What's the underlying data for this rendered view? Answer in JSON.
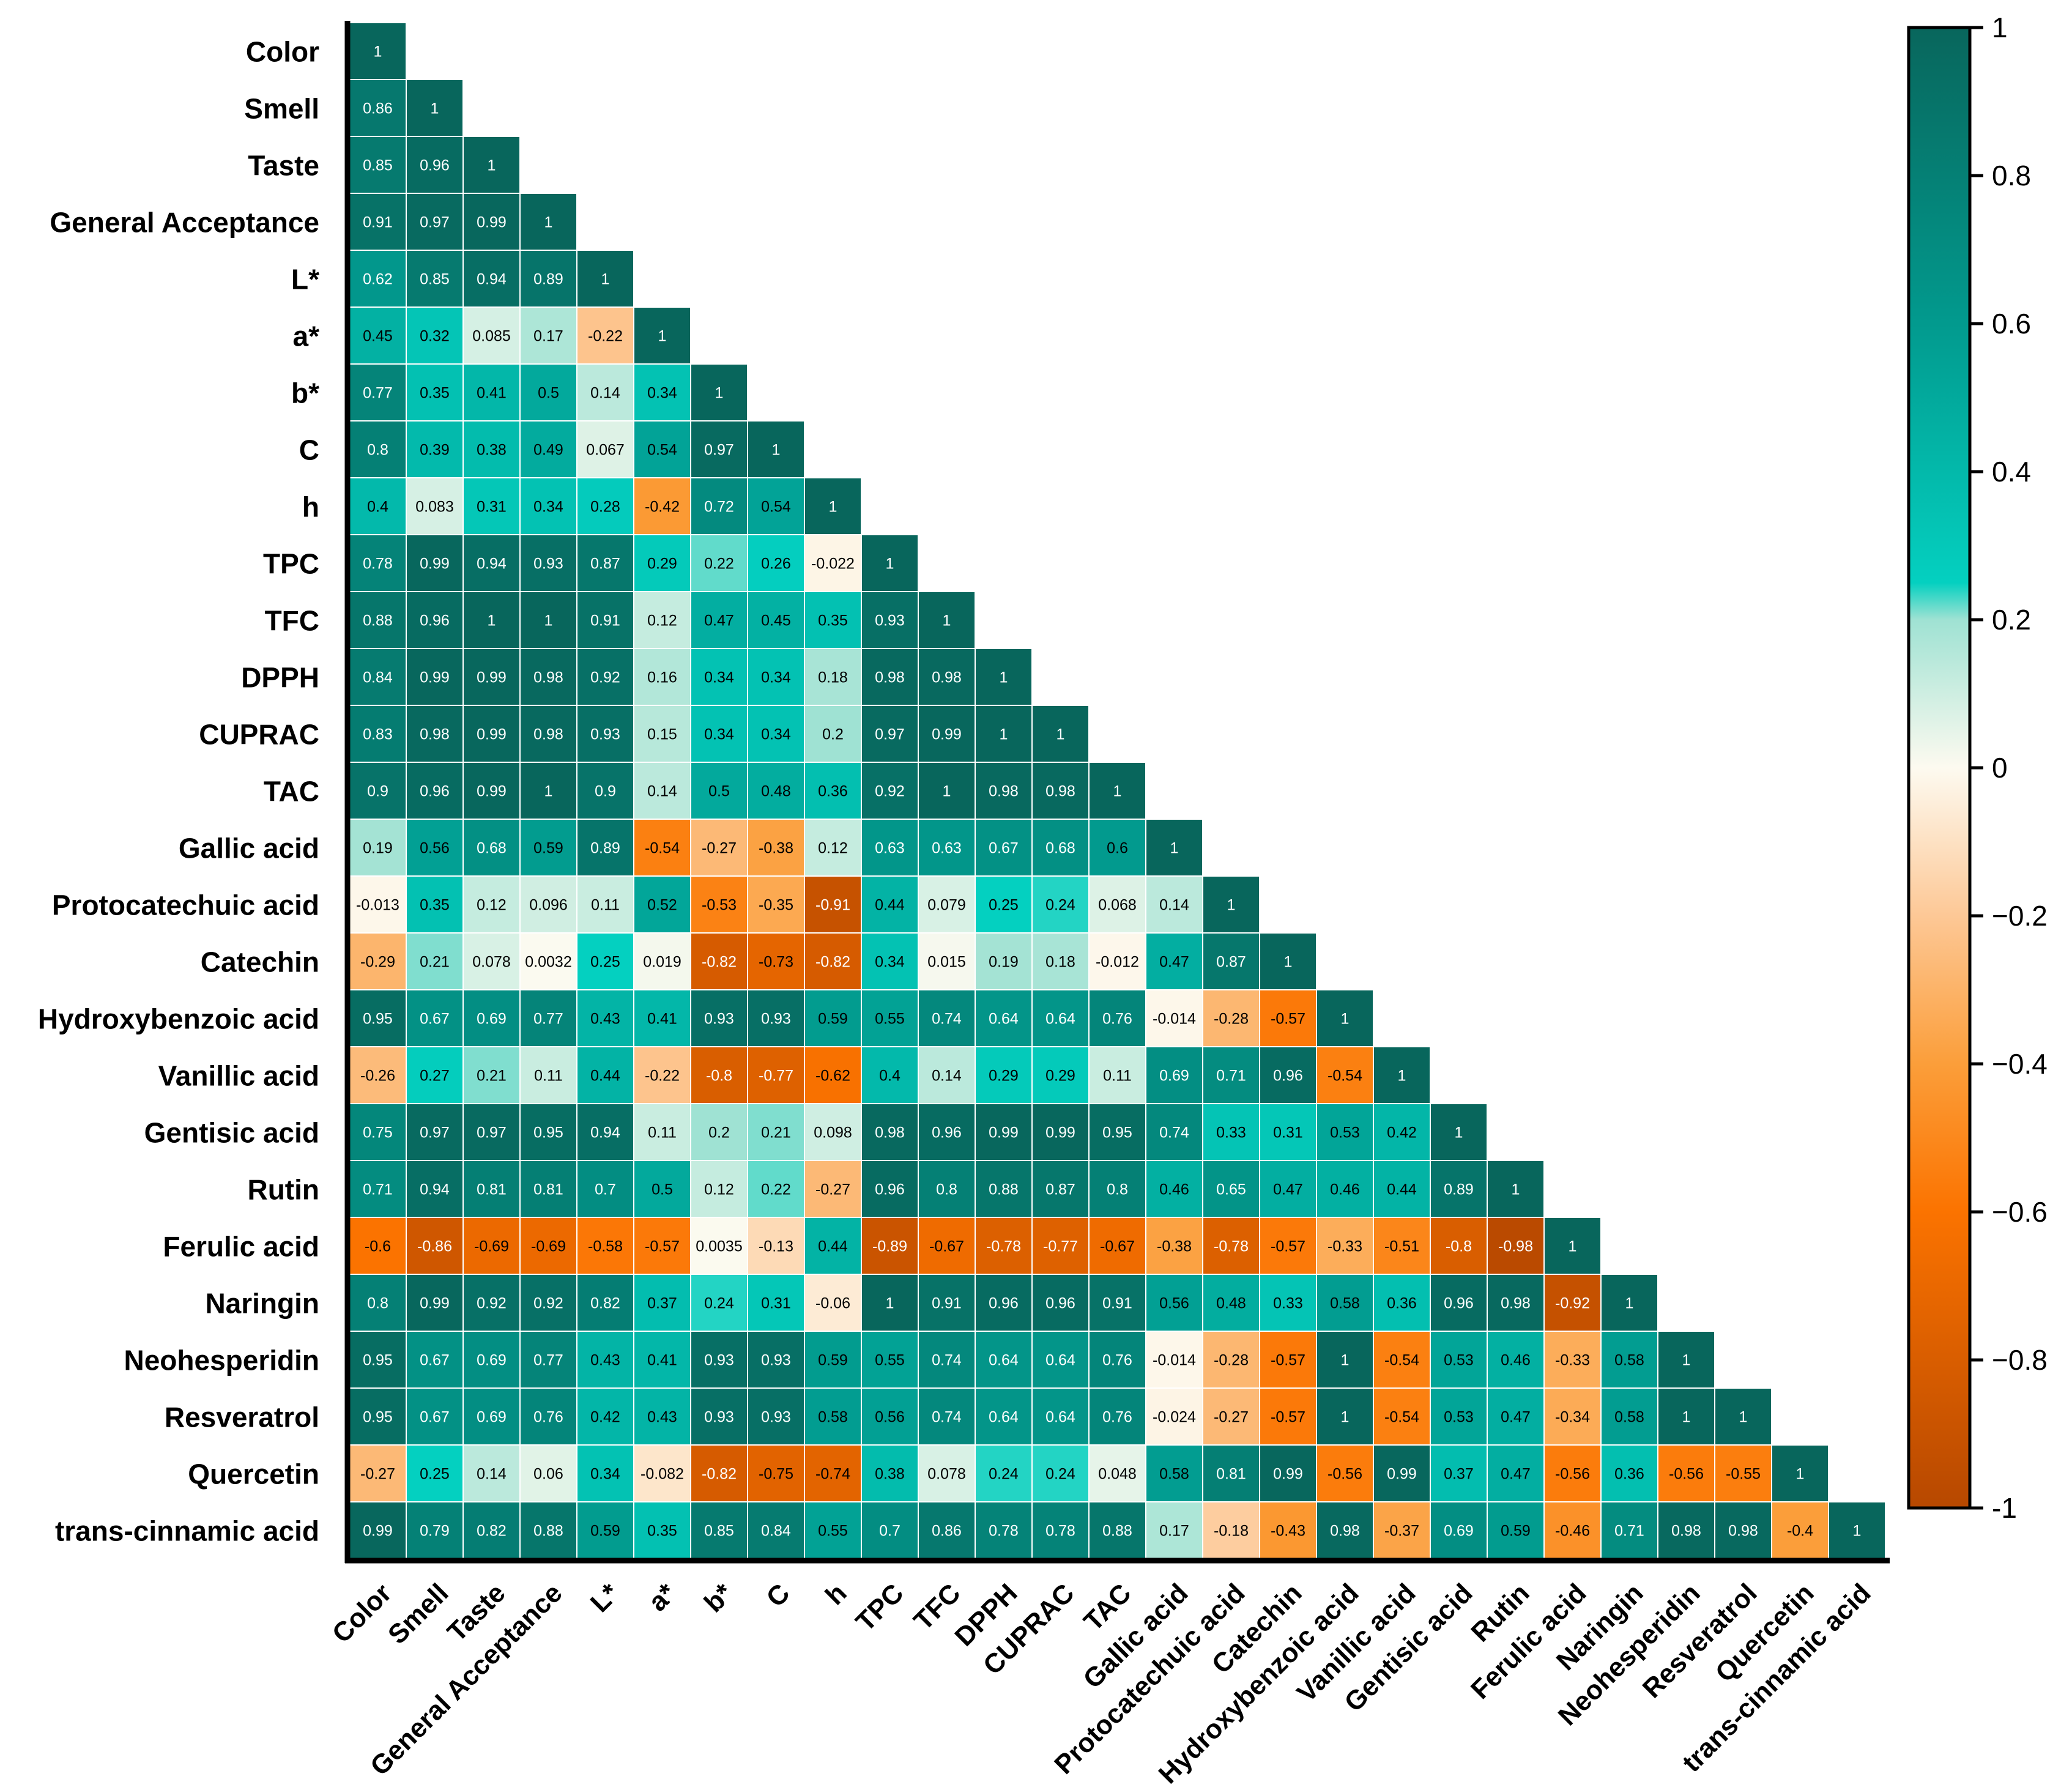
{
  "chart_data": {
    "type": "heatmap",
    "title": "",
    "layout": "lower-triangular correlation matrix",
    "variables": [
      "Color",
      "Smell",
      "Taste",
      "General Acceptance",
      "L*",
      "a*",
      "b*",
      "C",
      "h",
      "TPC",
      "TFC",
      "DPPH",
      "CUPRAC",
      "TAC",
      "Gallic acid",
      "Protocatechuic acid",
      "Catechin",
      "Hydroxybenzoic acid",
      "Vanillic acid",
      "Gentisic acid",
      "Rutin",
      "Ferulic acid",
      "Naringin",
      "Neohesperidin",
      "Resveratrol",
      "Quercetin",
      "trans-cinnamic acid"
    ],
    "values": [
      [
        "1"
      ],
      [
        "0.86",
        "1"
      ],
      [
        "0.85",
        "0.96",
        "1"
      ],
      [
        "0.91",
        "0.97",
        "0.99",
        "1"
      ],
      [
        "0.62",
        "0.85",
        "0.94",
        "0.89",
        "1"
      ],
      [
        "0.45",
        "0.32",
        "0.085",
        "0.17",
        "-0.22",
        "1"
      ],
      [
        "0.77",
        "0.35",
        "0.41",
        "0.5",
        "0.14",
        "0.34",
        "1"
      ],
      [
        "0.8",
        "0.39",
        "0.38",
        "0.49",
        "0.067",
        "0.54",
        "0.97",
        "1"
      ],
      [
        "0.4",
        "0.083",
        "0.31",
        "0.34",
        "0.28",
        "-0.42",
        "0.72",
        "0.54",
        "1"
      ],
      [
        "0.78",
        "0.99",
        "0.94",
        "0.93",
        "0.87",
        "0.29",
        "0.22",
        "0.26",
        "-0.022",
        "1"
      ],
      [
        "0.88",
        "0.96",
        "1",
        "1",
        "0.91",
        "0.12",
        "0.47",
        "0.45",
        "0.35",
        "0.93",
        "1"
      ],
      [
        "0.84",
        "0.99",
        "0.99",
        "0.98",
        "0.92",
        "0.16",
        "0.34",
        "0.34",
        "0.18",
        "0.98",
        "0.98",
        "1"
      ],
      [
        "0.83",
        "0.98",
        "0.99",
        "0.98",
        "0.93",
        "0.15",
        "0.34",
        "0.34",
        "0.2",
        "0.97",
        "0.99",
        "1",
        "1"
      ],
      [
        "0.9",
        "0.96",
        "0.99",
        "1",
        "0.9",
        "0.14",
        "0.5",
        "0.48",
        "0.36",
        "0.92",
        "1",
        "0.98",
        "0.98",
        "1"
      ],
      [
        "0.19",
        "0.56",
        "0.68",
        "0.59",
        "0.89",
        "-0.54",
        "-0.27",
        "-0.38",
        "0.12",
        "0.63",
        "0.63",
        "0.67",
        "0.68",
        "0.6",
        "1"
      ],
      [
        "-0.013",
        "0.35",
        "0.12",
        "0.096",
        "0.11",
        "0.52",
        "-0.53",
        "-0.35",
        "-0.91",
        "0.44",
        "0.079",
        "0.25",
        "0.24",
        "0.068",
        "0.14",
        "1"
      ],
      [
        "-0.29",
        "0.21",
        "0.078",
        "0.0032",
        "0.25",
        "0.019",
        "-0.82",
        "-0.73",
        "-0.82",
        "0.34",
        "0.015",
        "0.19",
        "0.18",
        "-0.012",
        "0.47",
        "0.87",
        "1"
      ],
      [
        "0.95",
        "0.67",
        "0.69",
        "0.77",
        "0.43",
        "0.41",
        "0.93",
        "0.93",
        "0.59",
        "0.55",
        "0.74",
        "0.64",
        "0.64",
        "0.76",
        "-0.014",
        "-0.28",
        "-0.57",
        "1"
      ],
      [
        "-0.26",
        "0.27",
        "0.21",
        "0.11",
        "0.44",
        "-0.22",
        "-0.8",
        "-0.77",
        "-0.62",
        "0.4",
        "0.14",
        "0.29",
        "0.29",
        "0.11",
        "0.69",
        "0.71",
        "0.96",
        "-0.54",
        "1"
      ],
      [
        "0.75",
        "0.97",
        "0.97",
        "0.95",
        "0.94",
        "0.11",
        "0.2",
        "0.21",
        "0.098",
        "0.98",
        "0.96",
        "0.99",
        "0.99",
        "0.95",
        "0.74",
        "0.33",
        "0.31",
        "0.53",
        "0.42",
        "1"
      ],
      [
        "0.71",
        "0.94",
        "0.81",
        "0.81",
        "0.7",
        "0.5",
        "0.12",
        "0.22",
        "-0.27",
        "0.96",
        "0.8",
        "0.88",
        "0.87",
        "0.8",
        "0.46",
        "0.65",
        "0.47",
        "0.46",
        "0.44",
        "0.89",
        "1"
      ],
      [
        "-0.6",
        "-0.86",
        "-0.69",
        "-0.69",
        "-0.58",
        "-0.57",
        "0.0035",
        "-0.13",
        "0.44",
        "-0.89",
        "-0.67",
        "-0.78",
        "-0.77",
        "-0.67",
        "-0.38",
        "-0.78",
        "-0.57",
        "-0.33",
        "-0.51",
        "-0.8",
        "-0.98",
        "1"
      ],
      [
        "0.8",
        "0.99",
        "0.92",
        "0.92",
        "0.82",
        "0.37",
        "0.24",
        "0.31",
        "-0.06",
        "1",
        "0.91",
        "0.96",
        "0.96",
        "0.91",
        "0.56",
        "0.48",
        "0.33",
        "0.58",
        "0.36",
        "0.96",
        "0.98",
        "-0.92",
        "1"
      ],
      [
        "0.95",
        "0.67",
        "0.69",
        "0.77",
        "0.43",
        "0.41",
        "0.93",
        "0.93",
        "0.59",
        "0.55",
        "0.74",
        "0.64",
        "0.64",
        "0.76",
        "-0.014",
        "-0.28",
        "-0.57",
        "1",
        "-0.54",
        "0.53",
        "0.46",
        "-0.33",
        "0.58",
        "1"
      ],
      [
        "0.95",
        "0.67",
        "0.69",
        "0.76",
        "0.42",
        "0.43",
        "0.93",
        "0.93",
        "0.58",
        "0.56",
        "0.74",
        "0.64",
        "0.64",
        "0.76",
        "-0.024",
        "-0.27",
        "-0.57",
        "1",
        "-0.54",
        "0.53",
        "0.47",
        "-0.34",
        "0.58",
        "1",
        "1"
      ],
      [
        "-0.27",
        "0.25",
        "0.14",
        "0.06",
        "0.34",
        "-0.082",
        "-0.82",
        "-0.75",
        "-0.74",
        "0.38",
        "0.078",
        "0.24",
        "0.24",
        "0.048",
        "0.58",
        "0.81",
        "0.99",
        "-0.56",
        "0.99",
        "0.37",
        "0.47",
        "-0.56",
        "0.36",
        "-0.56",
        "-0.55",
        "1"
      ],
      [
        "0.99",
        "0.79",
        "0.82",
        "0.88",
        "0.59",
        "0.35",
        "0.85",
        "0.84",
        "0.55",
        "0.7",
        "0.86",
        "0.78",
        "0.78",
        "0.88",
        "0.17",
        "-0.18",
        "-0.43",
        "0.98",
        "-0.37",
        "0.69",
        "0.59",
        "-0.46",
        "0.71",
        "0.98",
        "0.98",
        "-0.4",
        "1"
      ]
    ],
    "colorbar": {
      "range": [
        -1,
        1
      ],
      "tick_labels": [
        "1",
        "0.8",
        "0.6",
        "0.4",
        "0.2",
        "0",
        "−0.2",
        "−0.4",
        "−0.6",
        "−0.8",
        "-1"
      ],
      "colors": {
        "pos_high": "#08665c",
        "pos_mid": "#029a8e",
        "pos_low": "#04d0c0",
        "pos_light": "#9fe2d3",
        "zero": "#fdfaf0",
        "neg_light": "#fdc896",
        "neg_low": "#fb9e3a",
        "neg_mid": "#fb7300",
        "neg_high": "#b74800"
      }
    }
  }
}
